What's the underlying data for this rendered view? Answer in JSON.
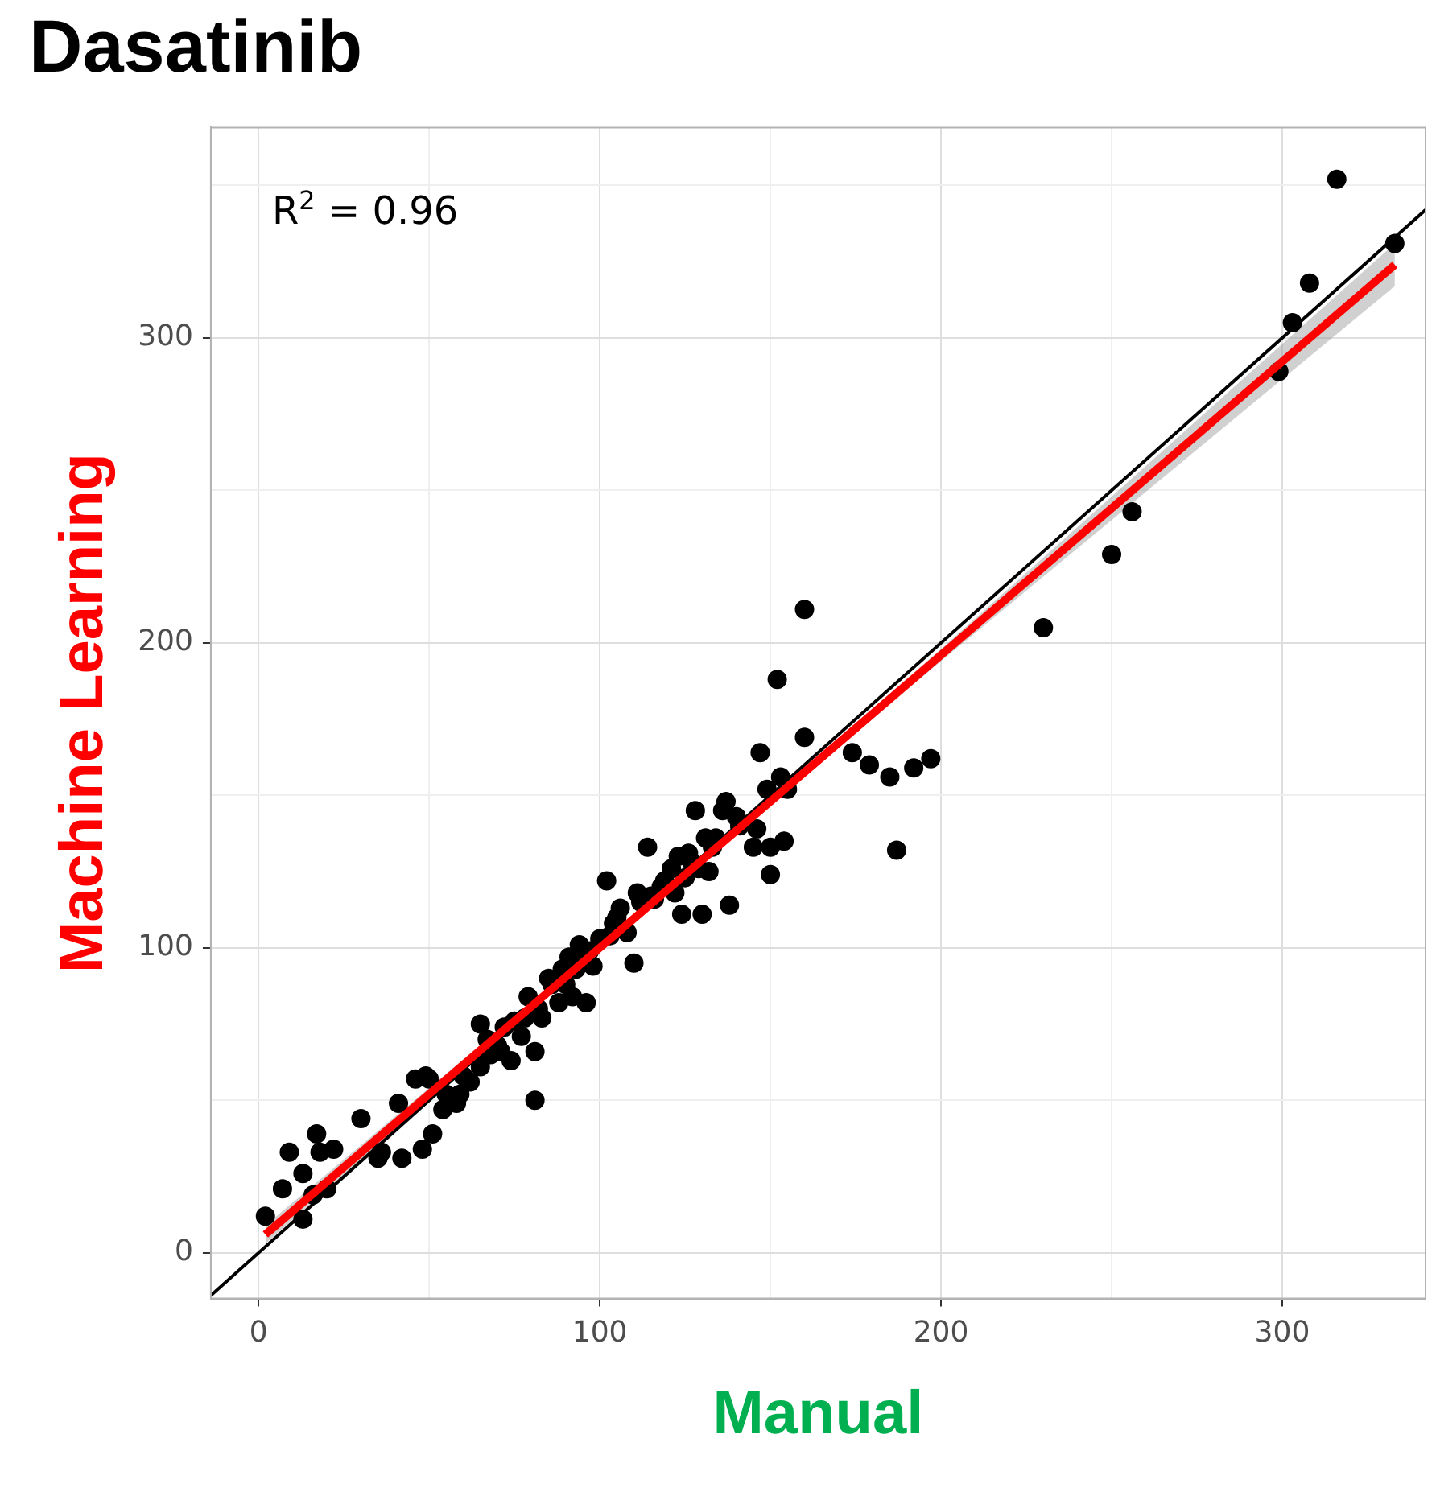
{
  "chart_data": {
    "type": "scatter",
    "title": "Dasatinib",
    "xlabel": "Manual",
    "ylabel": "Machine Learning",
    "annotations": [
      "R$^{2}$ = 0.96"
    ],
    "xlim": [
      -14,
      342
    ],
    "ylim": [
      -15,
      369
    ],
    "xticks": [
      0,
      {
        "value": 50,
        "label": null
      },
      100,
      {
        "value": 150,
        "label": null
      },
      200,
      {
        "value": 250,
        "label": null
      },
      300
    ],
    "yticks": [
      0,
      {
        "value": 50,
        "label": null
      },
      100,
      {
        "value": 150,
        "label": null
      },
      200,
      {
        "value": 250,
        "label": null
      },
      300,
      {
        "value": 350,
        "label": null
      }
    ],
    "grid": true,
    "series": [
      {
        "marker": "circle",
        "color": "#000000",
        "x": [
          2,
          7,
          9,
          13,
          13,
          16,
          17,
          18,
          20,
          22,
          30,
          35,
          36,
          41,
          42,
          46,
          48,
          49,
          50,
          51,
          54,
          58,
          59,
          62,
          65,
          65,
          67,
          68,
          71,
          72,
          74,
          77,
          79,
          81,
          81,
          83,
          85,
          88,
          89,
          91,
          92,
          94,
          96,
          98,
          100,
          102,
          104,
          106,
          108,
          110,
          111,
          114,
          116,
          119,
          121,
          124,
          123,
          126,
          128,
          130,
          132,
          134,
          136,
          138,
          137,
          140,
          141,
          145,
          146,
          147,
          149,
          150,
          150,
          152,
          153,
          154,
          155,
          160,
          160,
          174,
          179,
          185,
          187,
          192,
          197,
          230,
          250,
          256,
          299,
          303,
          308,
          316,
          333,
          55,
          60,
          70,
          75,
          78,
          82,
          86,
          90,
          93,
          95,
          97,
          103,
          105,
          112,
          115,
          118,
          122,
          125,
          127,
          129,
          131,
          133
        ],
        "values": [
          12,
          21,
          33,
          26,
          11,
          19,
          39,
          33,
          21,
          34,
          44,
          31,
          33,
          49,
          31,
          57,
          34,
          58,
          57,
          39,
          47,
          49,
          52,
          56,
          61,
          75,
          70,
          65,
          66,
          74,
          63,
          71,
          84,
          50,
          66,
          77,
          90,
          82,
          93,
          97,
          84,
          101,
          82,
          94,
          103,
          122,
          108,
          113,
          105,
          95,
          118,
          133,
          116,
          122,
          126,
          111,
          130,
          131,
          145,
          111,
          125,
          136,
          145,
          114,
          148,
          143,
          140,
          133,
          139,
          164,
          152,
          124,
          133,
          188,
          156,
          135,
          152,
          169,
          211,
          164,
          160,
          156,
          132,
          159,
          162,
          205,
          229,
          243,
          289,
          305,
          318,
          352,
          331,
          52,
          58,
          68,
          76,
          77,
          80,
          88,
          88,
          93,
          97,
          99,
          104,
          110,
          115,
          117,
          120,
          118,
          123,
          128,
          126,
          136,
          133
        ]
      },
      {
        "type": "line",
        "marker": "none",
        "color": "#ff0000",
        "x": [
          2,
          100,
          200,
          333
        ],
        "values": [
          6,
          100,
          196,
          324
        ],
        "lower": [
          3,
          99,
          194,
          317
        ],
        "upper": [
          9,
          101,
          198,
          331
        ]
      },
      {
        "type": "line",
        "marker": "none",
        "color": "#000000",
        "x": [
          -14,
          342
        ],
        "values": [
          -14,
          342
        ]
      }
    ]
  }
}
